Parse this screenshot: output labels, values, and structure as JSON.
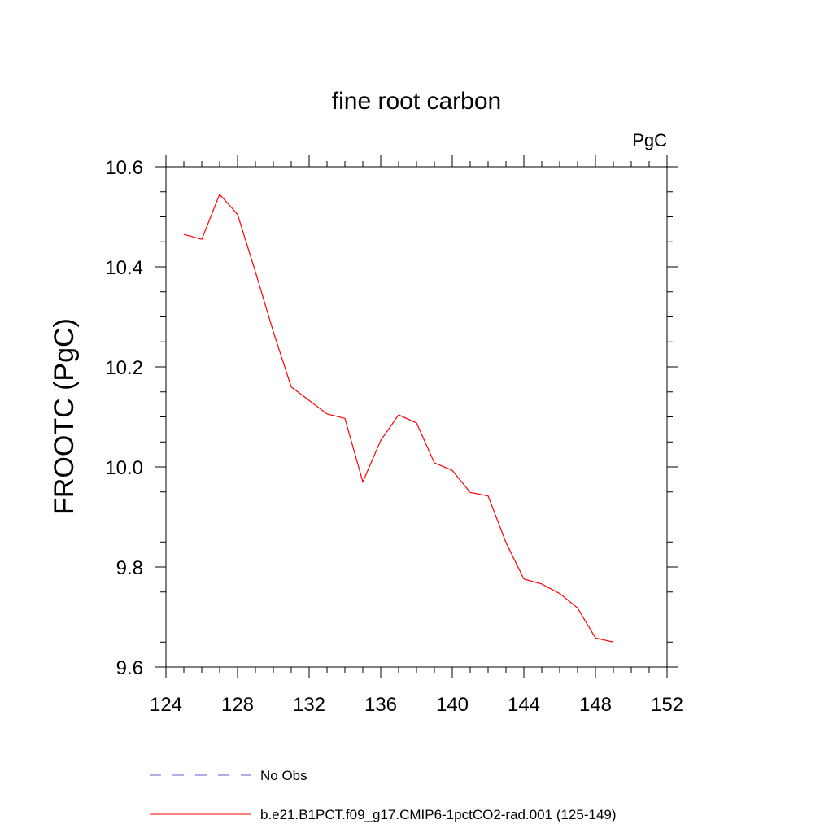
{
  "chart_data": {
    "type": "line",
    "title": "fine root carbon",
    "units_label": "PgC",
    "ylabel": "FROOTC  (PgC)",
    "xlabel": "",
    "xlim": [
      124,
      152
    ],
    "ylim": [
      9.6,
      10.6
    ],
    "xticks": [
      124,
      128,
      132,
      136,
      140,
      144,
      148,
      152
    ],
    "yticks": [
      9.6,
      9.8,
      10.0,
      10.2,
      10.4,
      10.6
    ],
    "xtick_labels": [
      "124",
      "128",
      "132",
      "136",
      "140",
      "144",
      "148",
      "152"
    ],
    "ytick_labels": [
      "9.6",
      "9.8",
      "10.0",
      "10.2",
      "10.4",
      "10.6"
    ],
    "grid": false,
    "legend_position": "bottom",
    "series": [
      {
        "name": "No Obs",
        "color": "#6a5acd",
        "dash": "dashed",
        "x": [],
        "y": []
      },
      {
        "name": "b.e21.B1PCT.f09_g17.CMIP6-1pctCO2-rad.001 (125-149)",
        "color": "#ff0000",
        "dash": "solid",
        "x": [
          125,
          126,
          127,
          128,
          129,
          130,
          131,
          132,
          133,
          134,
          135,
          136,
          137,
          138,
          139,
          140,
          141,
          142,
          143,
          144,
          145,
          146,
          147,
          148,
          149
        ],
        "y": [
          10.465,
          10.455,
          10.545,
          10.505,
          10.39,
          10.27,
          10.16,
          10.133,
          10.106,
          10.097,
          9.97,
          10.053,
          10.104,
          10.088,
          10.008,
          9.993,
          9.949,
          9.942,
          9.849,
          9.776,
          9.766,
          9.747,
          9.718,
          9.658,
          9.65
        ]
      }
    ]
  }
}
